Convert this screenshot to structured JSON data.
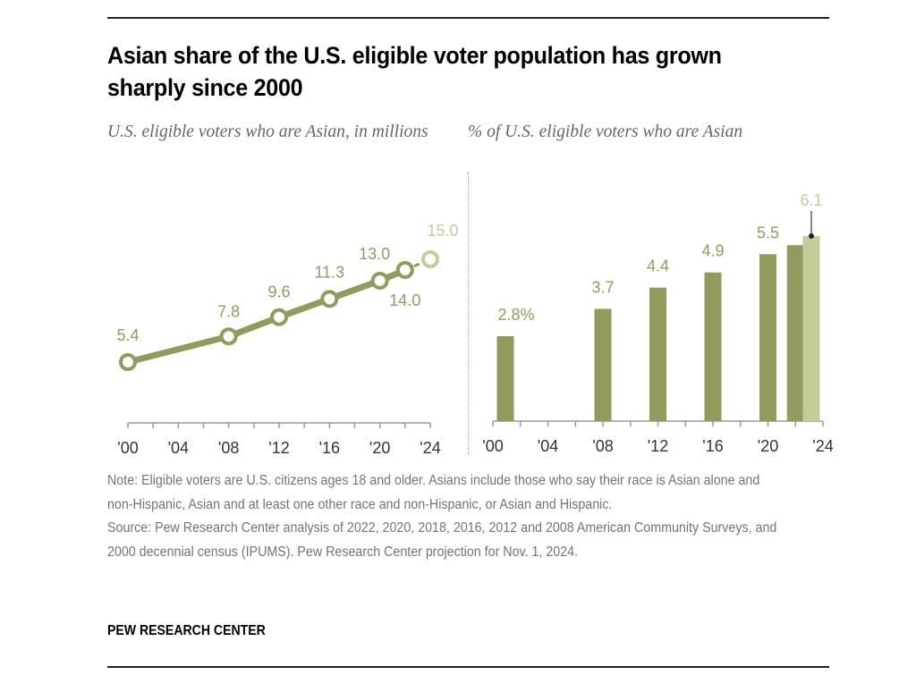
{
  "title": "Asian share of the U.S. eligible voter population has grown sharply since 2000",
  "colors": {
    "primary": "#949a5c",
    "projection": "#c5cc98",
    "axis": "#999999",
    "tick_text": "#333333",
    "note_text": "#737373",
    "subtitle_text": "#666666"
  },
  "chart_data": [
    {
      "type": "line",
      "subtitle": "U.S. eligible voters who are Asian, in millions",
      "x": [
        2000,
        2008,
        2012,
        2016,
        2020,
        2022,
        2024
      ],
      "values": [
        5.4,
        7.8,
        9.6,
        11.3,
        13.0,
        14.0,
        15.0
      ],
      "data_labels": [
        "5.4",
        "7.8",
        "9.6",
        "11.3",
        "13.0",
        "14.0",
        "15.0"
      ],
      "projected": [
        false,
        false,
        false,
        false,
        false,
        false,
        true
      ],
      "xlim": [
        2000,
        2024
      ],
      "xticks": [
        2000,
        2002,
        2004,
        2006,
        2008,
        2010,
        2012,
        2014,
        2016,
        2018,
        2020,
        2022,
        2024
      ],
      "xtick_labels": [
        "'00",
        "'04",
        "'08",
        "'12",
        "'16",
        "'20",
        "'24"
      ],
      "xtick_label_years": [
        2000,
        2004,
        2008,
        2012,
        2016,
        2020,
        2024
      ],
      "ylabel": "",
      "grid": false
    },
    {
      "type": "bar",
      "subtitle": "% of U.S. eligible voters who are Asian",
      "x": [
        2000,
        2008,
        2012,
        2016,
        2020,
        2022,
        2024
      ],
      "values": [
        2.8,
        3.7,
        4.4,
        4.9,
        5.5,
        5.8,
        6.1
      ],
      "data_labels": [
        "2.8%",
        "3.7",
        "4.4",
        "4.9",
        "5.5",
        "",
        "6.1"
      ],
      "projected": [
        false,
        false,
        false,
        false,
        false,
        false,
        true
      ],
      "xlim": [
        2000,
        2024
      ],
      "ylim": [
        0,
        6.1
      ],
      "xticks": [
        2000,
        2002,
        2004,
        2006,
        2008,
        2010,
        2012,
        2014,
        2016,
        2018,
        2020,
        2022,
        2024
      ],
      "xtick_labels": [
        "'00",
        "'04",
        "'08",
        "'12",
        "'16",
        "'20",
        "'24"
      ],
      "xtick_label_years": [
        2000,
        2004,
        2008,
        2012,
        2016,
        2020,
        2024
      ],
      "grid": false
    }
  ],
  "notes": {
    "note": "Note: Eligible voters are U.S. citizens ages 18 and older. Asians include those who say their race is Asian alone and non-Hispanic, Asian and at least one other race and non-Hispanic, or Asian and Hispanic.",
    "source": "Source: Pew Research Center analysis of 2022, 2020, 2018, 2016, 2012 and 2008 American Community Surveys, and 2000 decennial census (IPUMS). Pew Research Center projection for Nov. 1, 2024."
  },
  "brand": "PEW RESEARCH CENTER"
}
